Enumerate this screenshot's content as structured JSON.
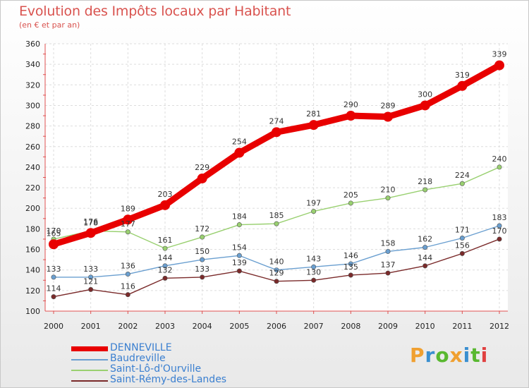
{
  "title": "Evolution des Impôts locaux par Habitant",
  "subtitle": "(en € et par an)",
  "logo": {
    "text": "Proxiti",
    "colors": [
      "#f0a030",
      "#3a8fd0",
      "#59b830",
      "#f0a030",
      "#3a8fd0",
      "#59b830",
      "#e04040"
    ]
  },
  "chart_data": {
    "type": "line",
    "title": "Evolution des Impôts locaux par Habitant",
    "subtitle": "(en € et par an)",
    "x": [
      "2000",
      "2001",
      "2002",
      "2003",
      "2004",
      "2005",
      "2006",
      "2007",
      "2008",
      "2009",
      "2010",
      "2011",
      "2012"
    ],
    "ylim": [
      100,
      360
    ],
    "yticks": [
      "100",
      "120",
      "140",
      "160",
      "180",
      "200",
      "220",
      "240",
      "260",
      "280",
      "300",
      "320",
      "340",
      "360"
    ],
    "grid": true,
    "legend_position": "bottom-left",
    "series": [
      {
        "name": "DENNEVILLE",
        "color": "#e80000",
        "values": [
          165,
          176,
          189,
          203,
          229,
          254,
          274,
          281,
          290,
          289,
          300,
          319,
          339
        ],
        "labels": [
          "165",
          "176",
          "189",
          "203",
          "229",
          "254",
          "274",
          "281",
          "290",
          "289",
          "300",
          "319",
          "339"
        ]
      },
      {
        "name": "Baudreville",
        "color": "#6a9fd0",
        "values": [
          133,
          133,
          136,
          144,
          150,
          154,
          140,
          143,
          146,
          158,
          162,
          171,
          183
        ],
        "labels": [
          "133",
          "133",
          "136",
          "144",
          "150",
          "154",
          "140",
          "143",
          "146",
          "158",
          "162",
          "171",
          "183"
        ]
      },
      {
        "name": "Saint-Lô-d'Ourville",
        "color": "#99d070",
        "values": [
          170,
          178,
          177,
          161,
          172,
          184,
          185,
          197,
          205,
          210,
          218,
          224,
          240
        ],
        "labels": [
          "170",
          "178",
          "177",
          "161",
          "172",
          "184",
          "185",
          "197",
          "205",
          "210",
          "218",
          "224",
          "240"
        ]
      },
      {
        "name": "Saint-Rémy-des-Landes",
        "color": "#7a2a2a",
        "values": [
          114,
          121,
          116,
          132,
          133,
          139,
          129,
          130,
          135,
          137,
          144,
          156,
          170
        ],
        "labels": [
          "114",
          "121",
          "116",
          "132",
          "133",
          "139",
          "129",
          "130",
          "135",
          "137",
          "144",
          "156",
          "170"
        ]
      }
    ]
  }
}
